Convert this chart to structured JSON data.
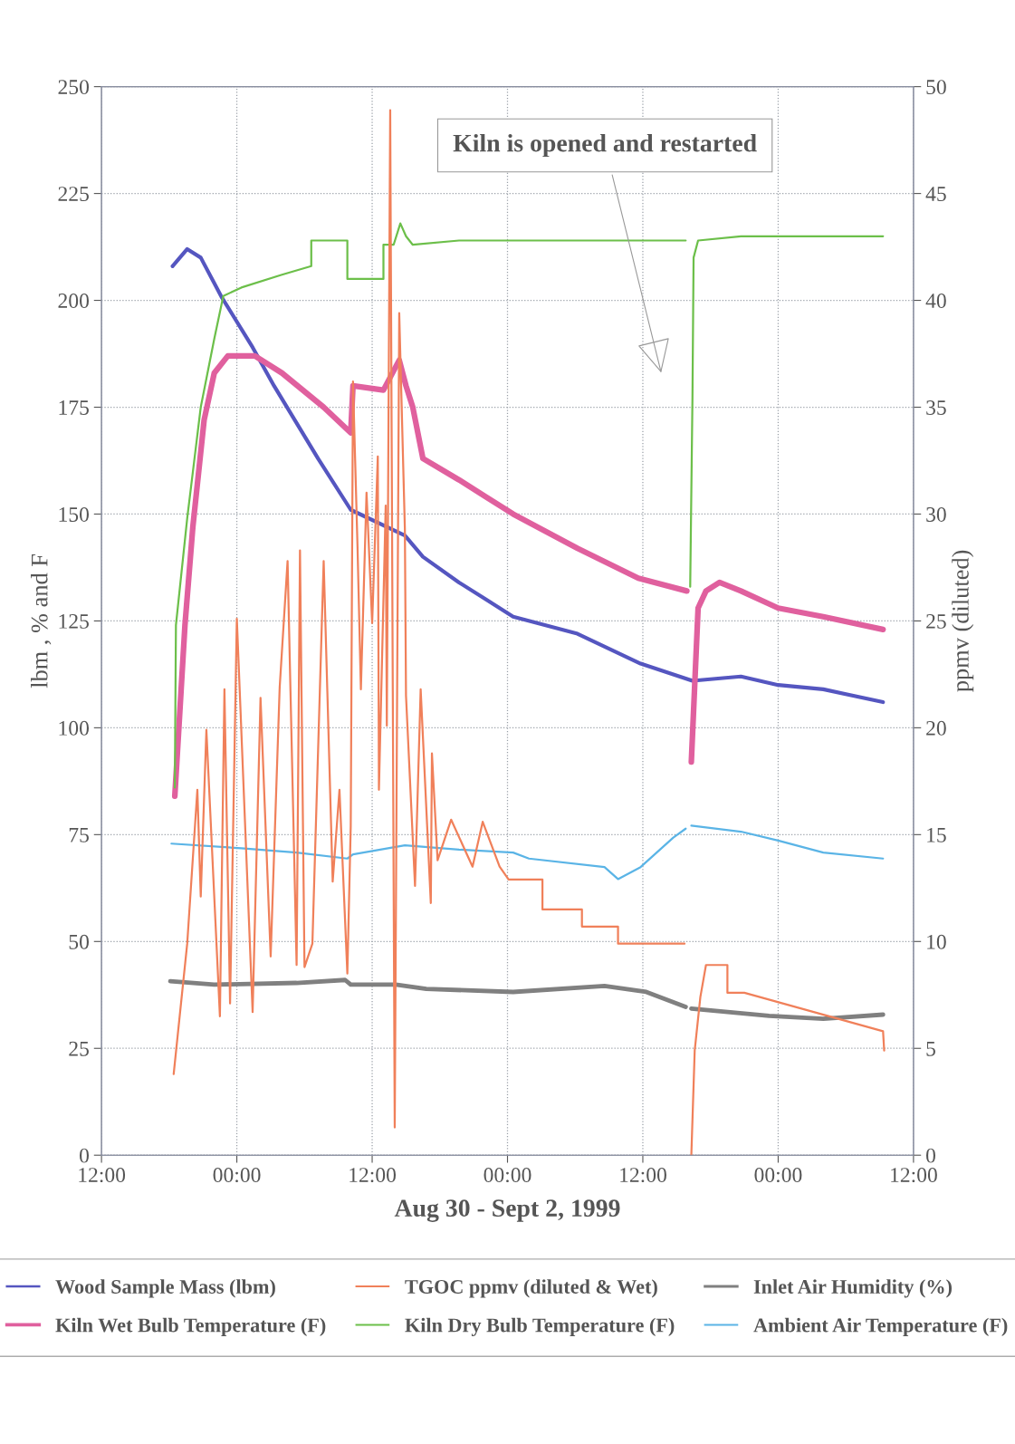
{
  "chart_data": {
    "type": "line",
    "xlabel": "Aug 30 - Sept 2, 1999",
    "ylabel": "lbm , % and F",
    "y2label": "ppmv (diluted)",
    "xlim": [
      "1999-08-30T12:00",
      "1999-09-02T12:00"
    ],
    "xticks": [
      {
        "value": "1999-08-30T12:00",
        "label": "12:00"
      },
      {
        "value": "1999-08-31T00:00",
        "label": "00:00"
      },
      {
        "value": "1999-08-31T12:00",
        "label": "12:00"
      },
      {
        "value": "1999-09-01T00:00",
        "label": "00:00"
      },
      {
        "value": "1999-09-01T12:00",
        "label": "12:00"
      },
      {
        "value": "1999-09-02T00:00",
        "label": "00:00"
      },
      {
        "value": "1999-09-02T12:00",
        "label": "12:00"
      }
    ],
    "ylim": [
      0,
      250
    ],
    "yticks": [
      0,
      25,
      50,
      75,
      100,
      125,
      150,
      175,
      200,
      225,
      250
    ],
    "y2lim": [
      0,
      50
    ],
    "y2ticks": [
      0,
      5,
      10,
      15,
      20,
      25,
      30,
      35,
      40,
      45,
      50
    ],
    "grid": true,
    "legend": "bottom",
    "annotations": [
      "Kiln is opened and restarted"
    ],
    "series": [
      {
        "name": "Wood Sample Mass (lbm)",
        "color": "#5556c0",
        "x": [
          "1999-08-30T18:18",
          "1999-08-30T19:36",
          "1999-08-30T20:48",
          "1999-08-30T22:36",
          "1999-08-31T01:24",
          "1999-08-31T03:18",
          "1999-08-31T07:12",
          "1999-08-31T10:06",
          "1999-08-31T14:54",
          "1999-08-31T16:30",
          "1999-08-31T19:42",
          "1999-08-31T22:06",
          "1999-09-01T00:30",
          "1999-09-01T06:12",
          "1999-09-01T11:48",
          "1999-09-01T16:24",
          "1999-09-01T20:42",
          "1999-09-02T00:00",
          "1999-09-02T04:00",
          "1999-09-02T09:18"
        ],
        "values": [
          208,
          212,
          210,
          201,
          189,
          180,
          163,
          151,
          145,
          140,
          134,
          130,
          126,
          122,
          115,
          111,
          112,
          110,
          109,
          106
        ]
      },
      {
        "name": "Kiln Wet Bulb Temperature (F)",
        "color": "#e0609e",
        "x": [
          "1999-08-30T18:30",
          "1999-08-30T19:24",
          "1999-08-30T20:06",
          "1999-08-30T21:06",
          "1999-08-30T22:00",
          "1999-08-30T23:12",
          "1999-08-31T01:36",
          "1999-08-31T04:00",
          "1999-08-31T07:42",
          "1999-08-31T10:06",
          "1999-08-31T10:18",
          "1999-08-31T13:00",
          "1999-08-31T14:24",
          "1999-08-31T15:00",
          "1999-08-31T15:36",
          "1999-08-31T16:30",
          "1999-08-31T19:42",
          "1999-08-31T22:06",
          "1999-09-01T00:30",
          "1999-09-01T06:12",
          "1999-09-01T11:36",
          "1999-09-01T15:54",
          "1999-09-01T16:06",
          "1999-09-01T16:18",
          "1999-09-01T16:54",
          "1999-09-01T17:36",
          "1999-09-01T18:48",
          "1999-09-01T20:42",
          "1999-09-02T00:00",
          "1999-09-02T04:00",
          "1999-09-02T09:18"
        ],
        "values": [
          84,
          124,
          147,
          172,
          183,
          187,
          187,
          183,
          175,
          169,
          180,
          179,
          186,
          180,
          175,
          163,
          158,
          154,
          150,
          142,
          135,
          132,
          null,
          92,
          128,
          132,
          134,
          132,
          128,
          126,
          123
        ]
      },
      {
        "name": "TGOC ppmv (diluted & Wet)",
        "color": "#f0805a",
        "axis": "y2",
        "x": [
          "1999-08-30T18:24",
          "1999-08-30T19:36",
          "1999-08-30T20:30",
          "1999-08-30T20:48",
          "1999-08-30T21:18",
          "1999-08-30T22:30",
          "1999-08-30T22:54",
          "1999-08-30T23:24",
          "1999-08-31T00:00",
          "1999-08-31T01:24",
          "1999-08-31T02:06",
          "1999-08-31T03:00",
          "1999-08-31T03:48",
          "1999-08-31T04:30",
          "1999-08-31T05:18",
          "1999-08-31T05:36",
          "1999-08-31T06:00",
          "1999-08-31T06:42",
          "1999-08-31T07:42",
          "1999-08-31T08:30",
          "1999-08-31T09:06",
          "1999-08-31T09:48",
          "1999-08-31T10:06",
          "1999-08-31T10:18",
          "1999-08-31T10:42",
          "1999-08-31T11:00",
          "1999-08-31T11:30",
          "1999-08-31T12:00",
          "1999-08-31T12:30",
          "1999-08-31T12:36",
          "1999-08-31T13:12",
          "1999-08-31T13:18",
          "1999-08-31T13:36",
          "1999-08-31T14:00",
          "1999-08-31T14:24",
          "1999-08-31T14:54",
          "1999-08-31T15:00",
          "1999-08-31T15:48",
          "1999-08-31T16:18",
          "1999-08-31T17:12",
          "1999-08-31T17:18",
          "1999-08-31T17:48",
          "1999-08-31T19:00",
          "1999-08-31T20:54",
          "1999-08-31T21:48",
          "1999-08-31T23:18",
          "1999-09-01T00:06",
          "1999-09-01T03:06",
          "1999-09-01T03:06",
          "1999-09-01T06:36",
          "1999-09-01T06:36",
          "1999-09-01T09:48",
          "1999-09-01T09:48",
          "1999-09-01T15:42",
          "1999-09-01T16:00",
          "1999-09-01T16:18",
          "1999-09-01T16:36",
          "1999-09-01T17:06",
          "1999-09-01T17:36",
          "1999-09-01T19:30",
          "1999-09-01T19:30",
          "1999-09-01T21:00",
          "1999-09-02T09:18",
          "1999-09-02T09:24"
        ],
        "values": [
          3.8,
          9.9,
          17.1,
          12.1,
          19.9,
          6.5,
          21.8,
          7.1,
          25.1,
          6.7,
          21.4,
          9.3,
          21.9,
          27.8,
          8.9,
          28.3,
          8.8,
          9.9,
          27.8,
          12.8,
          17.1,
          8.5,
          15.4,
          36.2,
          28.5,
          21.8,
          31.0,
          24.9,
          32.7,
          17.1,
          30.4,
          20.1,
          48.9,
          1.3,
          39.4,
          29.3,
          21.5,
          12.6,
          21.8,
          11.8,
          18.8,
          13.8,
          15.7,
          13.5,
          15.6,
          13.5,
          12.9,
          12.9,
          11.5,
          11.5,
          10.7,
          10.7,
          9.9,
          9.9,
          null,
          0.0,
          4.9,
          7.4,
          8.9,
          8.9,
          7.6,
          7.6,
          5.8,
          4.9
        ]
      },
      {
        "name": "Kiln Dry Bulb Temperature (F)",
        "color": "#6cbf4a",
        "x": [
          "1999-08-30T18:30",
          "1999-08-30T18:36",
          "1999-08-30T19:36",
          "1999-08-30T20:48",
          "1999-08-30T22:00",
          "1999-08-30T22:48",
          "1999-08-31T00:24",
          "1999-08-31T04:00",
          "1999-08-31T06:36",
          "1999-08-31T06:36",
          "1999-08-31T09:48",
          "1999-08-31T09:48",
          "1999-08-31T13:00",
          "1999-08-31T13:00",
          "1999-08-31T13:54",
          "1999-08-31T14:30",
          "1999-08-31T15:00",
          "1999-08-31T15:36",
          "1999-08-31T19:42",
          "1999-09-01T00:30",
          "1999-09-01T15:48",
          "1999-09-01T16:00",
          "1999-09-01T16:12",
          "1999-09-01T16:24",
          "1999-09-01T16:30",
          "1999-09-01T16:54",
          "1999-09-01T20:42",
          "1999-09-02T09:18"
        ],
        "values": [
          86,
          124,
          149,
          175,
          191,
          201,
          203,
          206,
          208,
          214,
          214,
          205,
          205,
          213,
          213,
          218,
          215,
          213,
          214,
          214,
          214,
          null,
          133,
          177,
          210,
          214,
          215,
          215
        ]
      },
      {
        "name": "Inlet Air Humidity (%)",
        "color": "#808080",
        "x": [
          "1999-08-30T18:06",
          "1999-08-30T22:00",
          "1999-08-31T05:18",
          "1999-08-31T09:36",
          "1999-08-31T10:06",
          "1999-08-31T14:06",
          "1999-08-31T16:48",
          "1999-09-01T00:30",
          "1999-09-01T08:36",
          "1999-09-01T12:18",
          "1999-09-01T15:48",
          "1999-09-01T16:00",
          "1999-09-01T16:18",
          "1999-09-01T23:12",
          "1999-09-02T04:00",
          "1999-09-02T09:18"
        ],
        "values": [
          40.7,
          39.9,
          40.3,
          41.0,
          39.9,
          39.9,
          38.9,
          38.2,
          39.6,
          38.2,
          34.7,
          null,
          34.3,
          32.6,
          31.9,
          32.9
        ]
      },
      {
        "name": "Ambient Air Temperature (F)",
        "color": "#5ab4e6",
        "x": [
          "1999-08-30T18:12",
          "1999-08-31T00:24",
          "1999-08-31T05:18",
          "1999-08-31T09:48",
          "1999-08-31T10:18",
          "1999-08-31T14:54",
          "1999-08-31T19:42",
          "1999-09-01T00:30",
          "1999-09-01T01:54",
          "1999-09-01T08:36",
          "1999-09-01T09:48",
          "1999-09-01T11:48",
          "1999-09-01T14:42",
          "1999-09-01T15:48",
          "1999-09-01T16:00",
          "1999-09-01T16:18",
          "1999-09-01T20:42",
          "1999-09-02T00:00",
          "1999-09-02T04:00",
          "1999-09-02T09:18"
        ],
        "values": [
          72.9,
          71.8,
          70.8,
          69.4,
          70.4,
          72.5,
          71.5,
          70.8,
          69.4,
          67.4,
          64.6,
          67.4,
          74.3,
          76.4,
          null,
          77.1,
          75.7,
          73.6,
          70.8,
          69.4
        ]
      }
    ]
  }
}
